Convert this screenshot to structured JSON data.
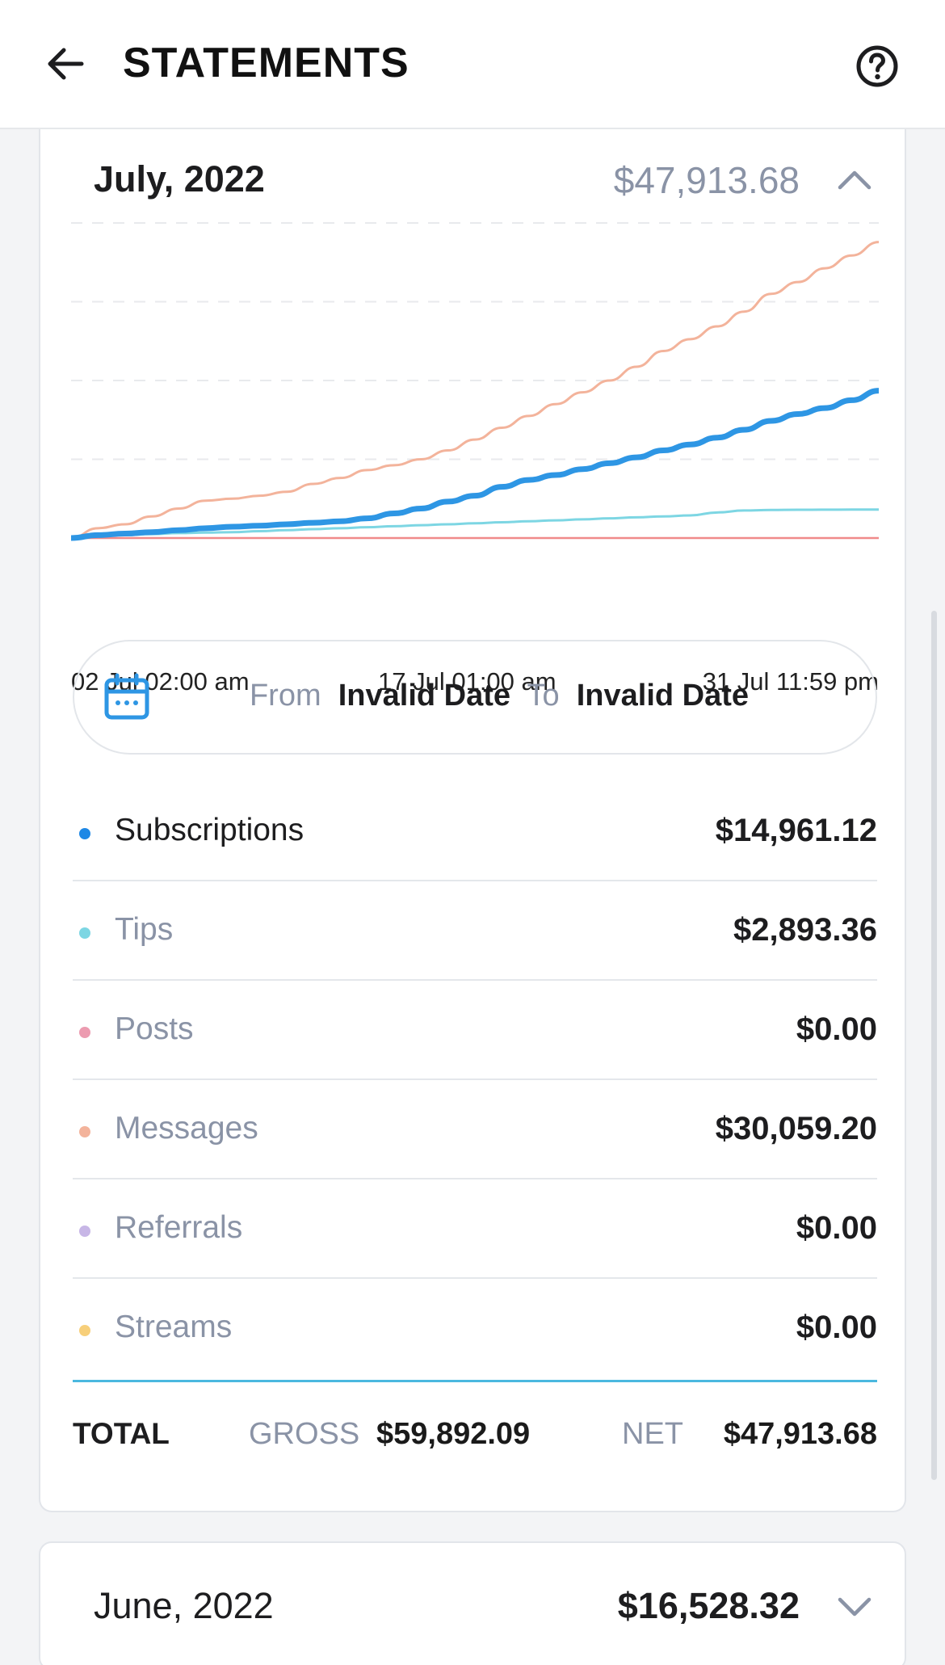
{
  "header": {
    "title": "STATEMENTS",
    "back_icon": "arrow-left-icon",
    "help_icon": "help-circle-icon"
  },
  "current_month": {
    "label": "July, 2022",
    "amount": "$47,913.68",
    "expanded": true
  },
  "chart_data": {
    "type": "line",
    "x_tick_labels": [
      "02 Jul 02:00 am",
      "17 Jul 01:00 am",
      "31 Jul 11:59 pm"
    ],
    "x": [
      1,
      2,
      3,
      4,
      5,
      6,
      7,
      8,
      9,
      10,
      11,
      12,
      13,
      14,
      15,
      16,
      17,
      18,
      19,
      20,
      21,
      22,
      23,
      24,
      25,
      26,
      27,
      28,
      29,
      30,
      31
    ],
    "series": [
      {
        "name": "Messages",
        "color": "#f3b39b",
        "values": [
          0,
          1000,
          1400,
          2200,
          3000,
          3800,
          4000,
          4300,
          4700,
          5500,
          6100,
          6900,
          7400,
          8000,
          8900,
          10000,
          11200,
          12400,
          13600,
          14800,
          16000,
          17400,
          19000,
          20200,
          21500,
          23000,
          24800,
          26000,
          27400,
          28700,
          30059.2
        ]
      },
      {
        "name": "Subscriptions",
        "color": "#2e96e4",
        "values": [
          0,
          300,
          450,
          600,
          800,
          1000,
          1150,
          1250,
          1400,
          1550,
          1700,
          2000,
          2500,
          3000,
          3700,
          4300,
          5200,
          5900,
          6400,
          7000,
          7600,
          8200,
          8900,
          9500,
          10200,
          11000,
          11900,
          12600,
          13200,
          14000,
          14961.12
        ]
      },
      {
        "name": "Tips",
        "color": "#7dd6e3",
        "values": [
          0,
          200,
          300,
          400,
          500,
          550,
          600,
          700,
          800,
          900,
          1000,
          1100,
          1200,
          1300,
          1400,
          1500,
          1600,
          1700,
          1800,
          1900,
          2000,
          2100,
          2200,
          2300,
          2600,
          2800,
          2850,
          2870,
          2880,
          2890,
          2893.36
        ]
      },
      {
        "name": "Posts",
        "color": "#f08a8a",
        "values": [
          0,
          0,
          0,
          0,
          0,
          0,
          0,
          0,
          0,
          0,
          0,
          0,
          0,
          0,
          0,
          0,
          0,
          0,
          0,
          0,
          0,
          0,
          0,
          0,
          0,
          0,
          0,
          0,
          0,
          0,
          0
        ]
      }
    ],
    "ylim": [
      0,
      32000
    ],
    "grid": true,
    "legend": "none"
  },
  "date_range": {
    "from_label": "From",
    "from_value": "Invalid Date",
    "to_label": "To",
    "to_value": "Invalid Date",
    "icon": "calendar-icon"
  },
  "breakdown": [
    {
      "label": "Subscriptions",
      "value": "$14,961.12",
      "color": "#1e88e5",
      "label_color": "#1d1d1f"
    },
    {
      "label": "Tips",
      "value": "$2,893.36",
      "color": "#7dd6e3",
      "label_color": "#8a93a6"
    },
    {
      "label": "Posts",
      "value": "$0.00",
      "color": "#ec9bb0",
      "label_color": "#8a93a6"
    },
    {
      "label": "Messages",
      "value": "$30,059.20",
      "color": "#f3b39b",
      "label_color": "#8a93a6"
    },
    {
      "label": "Referrals",
      "value": "$0.00",
      "color": "#c7b6e6",
      "label_color": "#8a93a6"
    },
    {
      "label": "Streams",
      "value": "$0.00",
      "color": "#f7cf7a",
      "label_color": "#8a93a6"
    }
  ],
  "totals": {
    "label": "TOTAL",
    "gross_label": "GROSS",
    "gross_value": "$59,892.09",
    "net_label": "NET",
    "net_value": "$47,913.68"
  },
  "previous_month": {
    "label": "June, 2022",
    "amount": "$16,528.32",
    "expanded": false
  }
}
